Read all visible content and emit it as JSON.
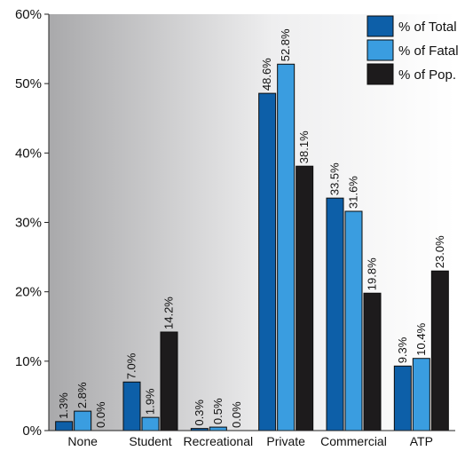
{
  "chart_data": {
    "type": "bar",
    "categories": [
      "None",
      "Student",
      "Recreational",
      "Private",
      "Commercial",
      "ATP"
    ],
    "series": [
      {
        "name": "% of Total",
        "color": "#0d5fa8",
        "values": [
          1.3,
          7.0,
          0.3,
          48.6,
          33.5,
          9.3
        ],
        "labels": [
          "1.3%",
          "7.0%",
          "0.3%",
          "48.6%",
          "33.5%",
          "9.3%"
        ]
      },
      {
        "name": "% of Fatal",
        "color": "#3a9de0",
        "values": [
          2.8,
          1.9,
          0.5,
          52.8,
          31.6,
          10.4
        ],
        "labels": [
          "2.8%",
          "1.9%",
          "0.5%",
          "52.8%",
          "31.6%",
          "10.4%"
        ]
      },
      {
        "name": "% of Pop.",
        "color": "#1d1b1c",
        "values": [
          0.0,
          14.2,
          0.0,
          38.1,
          19.8,
          23.0
        ],
        "labels": [
          "0.0%",
          "14.2%",
          "0.0%",
          "38.1%",
          "19.8%",
          "23.0%"
        ]
      }
    ],
    "yticks": [
      "0%",
      "10%",
      "20%",
      "30%",
      "40%",
      "50%",
      "60%"
    ],
    "ylim": [
      0,
      60
    ],
    "legend_position": "top-right",
    "background": "gradient gray-to-white"
  }
}
